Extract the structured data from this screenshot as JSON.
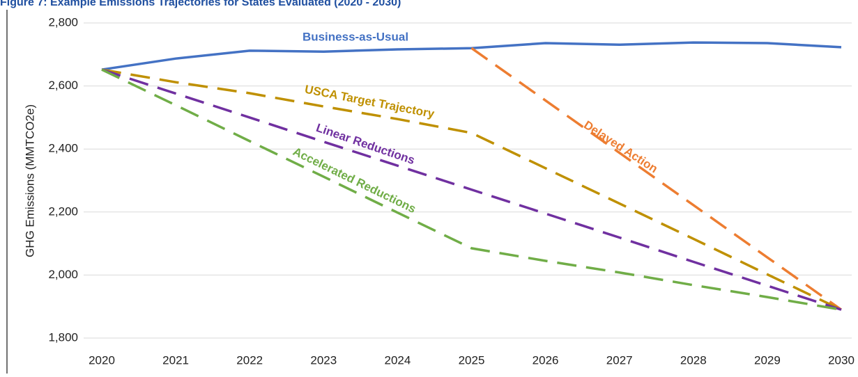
{
  "chart_data": {
    "type": "line",
    "title": "Figure 7: Example Emissions Trajectories for States Evaluated (2020 - 2030)",
    "y_label": "GHG Emissions (MMTCO2e)",
    "x": [
      2020,
      2021,
      2022,
      2023,
      2024,
      2025,
      2026,
      2027,
      2028,
      2029,
      2030
    ],
    "xlim": [
      2020,
      2030
    ],
    "xticks": [
      2020,
      2021,
      2022,
      2023,
      2024,
      2025,
      2026,
      2027,
      2028,
      2029,
      2030
    ],
    "ylim": [
      1800,
      2800
    ],
    "yticks": [
      {
        "value": 1800,
        "label": "1,800"
      },
      {
        "value": 2000,
        "label": "2,000"
      },
      {
        "value": 2200,
        "label": "2,200"
      },
      {
        "value": 2400,
        "label": "2,400"
      },
      {
        "value": 2600,
        "label": "2,600"
      },
      {
        "value": 2800,
        "label": "2,800"
      }
    ],
    "grid": true,
    "series": [
      {
        "name": "Business-as-Usual",
        "color": "#4472c4",
        "dashed": false,
        "values": [
          2652,
          2687,
          2712,
          2709,
          2716,
          2720,
          2736,
          2731,
          2738,
          2736,
          2723
        ]
      },
      {
        "name": "Delayed Action",
        "color": "#ed7d31",
        "dashed": true,
        "values": [
          null,
          null,
          null,
          null,
          null,
          2720,
          2554,
          2388,
          2222,
          2056,
          1890
        ]
      },
      {
        "name": "USCA Target Trajectory",
        "color": "#bf9000",
        "dashed": true,
        "values": [
          2652,
          2612,
          2577,
          2535,
          2495,
          2451,
          2339,
          2227,
          2115,
          2002,
          1890
        ]
      },
      {
        "name": "Linear Reductions",
        "color": "#7030a0",
        "dashed": true,
        "values": [
          2652,
          2576,
          2500,
          2423,
          2347,
          2271,
          2195,
          2119,
          2042,
          1966,
          1890
        ]
      },
      {
        "name": "Accelerated Reductions",
        "color": "#70ad47",
        "dashed": true,
        "values": [
          2652,
          2539,
          2425,
          2312,
          2198,
          2085,
          2045,
          2008,
          1968,
          1930,
          1890
        ]
      }
    ]
  }
}
